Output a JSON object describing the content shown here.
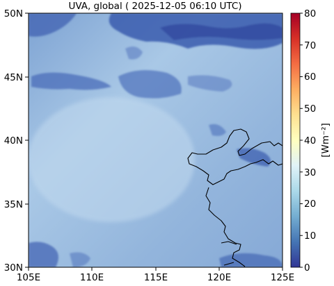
{
  "title": "UVA, global ( 2025-12-05 06:10 UTC)",
  "map": {
    "lon_range": [
      105,
      125
    ],
    "lat_range": [
      30,
      50
    ],
    "x_ticks": [
      "105E",
      "110E",
      "115E",
      "120E",
      "125E"
    ],
    "y_ticks": [
      "30N",
      "35N",
      "40N",
      "45N",
      "50N"
    ],
    "field_palette": {
      "background": "#8fb2d9",
      "light": "#b8d4ec",
      "cloud": "#3d5fb0",
      "cloud_dark": "#2c3f98"
    },
    "coastline_color": "#000000"
  },
  "colorbar": {
    "label": "[Wm$^{-2}$]",
    "label_display": "[Wm⁻²]",
    "range": [
      0,
      80
    ],
    "ticks": [
      "0",
      "10",
      "20",
      "30",
      "40",
      "50",
      "60",
      "70",
      "80"
    ],
    "colormap": "RdYlBu_r",
    "colors": [
      "#313695",
      "#4575b4",
      "#74add1",
      "#abd9e9",
      "#e0f3f8",
      "#ffffbf",
      "#fee090",
      "#fdae61",
      "#f46d43",
      "#d73027",
      "#a50026"
    ]
  }
}
